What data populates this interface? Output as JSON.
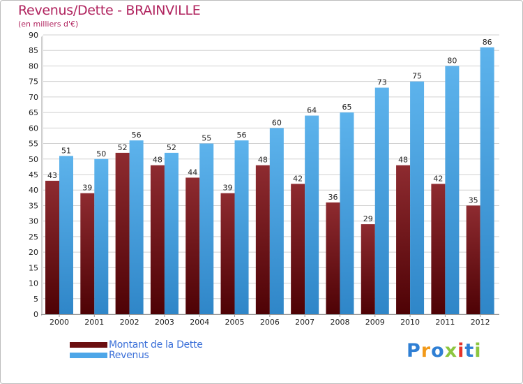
{
  "header": {
    "title": "Revenus/Dette - BRAINVILLE",
    "subtitle": "(en milliers d'€)"
  },
  "chart_data": {
    "type": "bar",
    "title": "Revenus/Dette - BRAINVILLE",
    "subtitle": "(en milliers d'€)",
    "categories": [
      "2000",
      "2001",
      "2002",
      "2003",
      "2004",
      "2005",
      "2006",
      "2007",
      "2008",
      "2009",
      "2010",
      "2011",
      "2012"
    ],
    "series": [
      {
        "name": "Montant de la Dette",
        "values": [
          43,
          39,
          52,
          48,
          44,
          39,
          48,
          42,
          36,
          29,
          48,
          42,
          35
        ],
        "color": "#7a1a1e"
      },
      {
        "name": "Revenus",
        "values": [
          51,
          50,
          56,
          52,
          55,
          56,
          60,
          64,
          65,
          73,
          75,
          80,
          86
        ],
        "color": "#4da6e8"
      }
    ],
    "ylim": [
      0,
      90
    ],
    "yticks": [
      0,
      5,
      10,
      15,
      20,
      25,
      30,
      35,
      40,
      45,
      50,
      55,
      60,
      65,
      70,
      75,
      80,
      85,
      90
    ],
    "grid": true,
    "legend": "bottom-left"
  },
  "legend": {
    "items": [
      {
        "label": "Montant de la Dette",
        "color": "#6b0f10"
      },
      {
        "label": "Revenus",
        "color": "#4da6e8"
      }
    ]
  },
  "logo": {
    "text": "Proxiti",
    "letters": [
      "P",
      "r",
      "o",
      "x",
      "i",
      "t",
      "i"
    ],
    "colors": [
      "#2f7fd4",
      "#f29a1a",
      "#2f7fd4",
      "#8cc63f",
      "#e6332a",
      "#2f7fd4",
      "#8cc63f"
    ]
  }
}
